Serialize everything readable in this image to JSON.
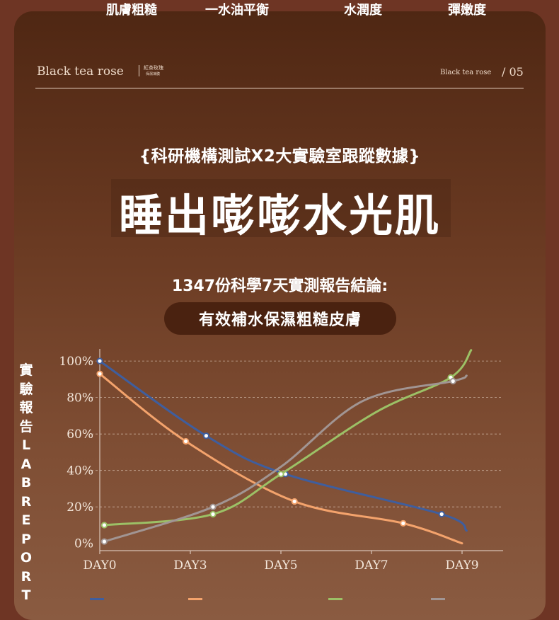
{
  "header": {
    "brand_en": "Black tea rose",
    "brand_cn_line1": "紅茶玫瑰",
    "brand_cn_line2": "保濕凍膜",
    "brand_right": "Black tea rose",
    "page_number": "/ 05"
  },
  "sub_headline": "{科研機構測試X2大實驗室跟蹤數據}",
  "headline": "睡出嘭嘭水光肌",
  "conclusion": "1347份科學7天實測報告結論:",
  "pill_text": "有效補水保濕粗糙皮膚",
  "side_label": [
    "實",
    "驗",
    "報",
    "告",
    "L",
    "A",
    "B",
    "R",
    "E",
    "P",
    "O",
    "R",
    "T"
  ],
  "chart_data": {
    "type": "line",
    "title": "",
    "xlabel": "",
    "ylabel": "",
    "x_ticks": [
      "DAY0",
      "DAY3",
      "DAY5",
      "DAY7",
      "DAY9"
    ],
    "x_tick_values": [
      0,
      2,
      4,
      6,
      8
    ],
    "y_ticks": [
      "0%",
      "20%",
      "40%",
      "60%",
      "80%",
      "100%"
    ],
    "y_tick_values": [
      0,
      20,
      40,
      60,
      80,
      100
    ],
    "xlim": [
      0,
      8.8
    ],
    "ylim": [
      -4,
      102
    ],
    "grid": true,
    "legend_position": "bottom",
    "series": [
      {
        "name": "肌膚粗糙",
        "color": "#3f5e9e",
        "x": [
          0,
          2.35,
          4.1,
          7.55,
          8.1
        ],
        "y": [
          100,
          59,
          38,
          16,
          7
        ],
        "markers": [
          true,
          true,
          true,
          true,
          false
        ]
      },
      {
        "name": "一水油平衡",
        "color": "#f4a36c",
        "x": [
          0,
          1.9,
          4.3,
          6.7,
          8.0
        ],
        "y": [
          93,
          56,
          23,
          11,
          0
        ],
        "markers": [
          true,
          true,
          true,
          true,
          false
        ]
      },
      {
        "name": "水潤度",
        "color": "#9cc166",
        "x": [
          0.1,
          2.5,
          4.0,
          6.1,
          7.75,
          8.2
        ],
        "y": [
          10,
          16,
          38,
          72,
          91,
          106
        ],
        "markers": [
          true,
          true,
          true,
          false,
          true,
          false
        ]
      },
      {
        "name": "彈嫩度",
        "color": "#a19593",
        "x": [
          0.1,
          2.5,
          4.0,
          5.8,
          7.8,
          8.1
        ],
        "y": [
          1,
          20,
          42,
          78,
          89,
          92
        ],
        "markers": [
          true,
          true,
          false,
          false,
          true,
          false
        ]
      }
    ]
  }
}
